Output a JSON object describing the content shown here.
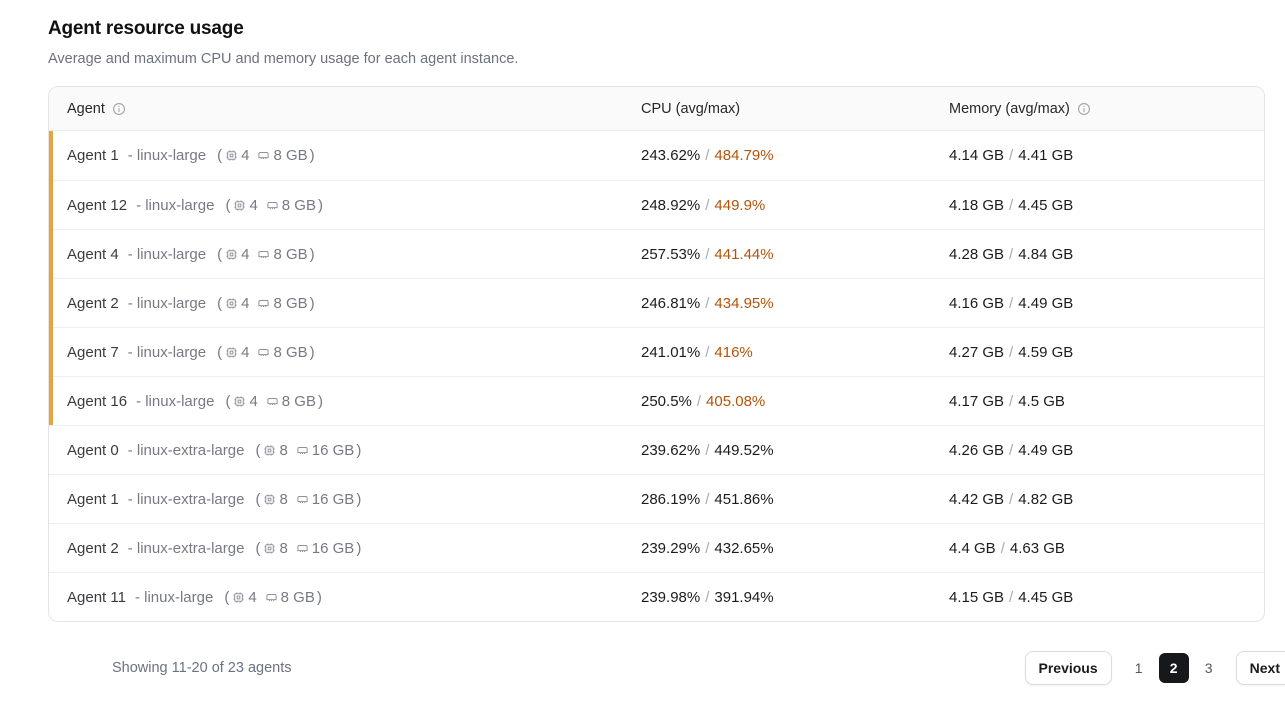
{
  "page": {
    "title": "Agent resource usage",
    "subtitle": "Average and maximum CPU and memory usage for each agent instance."
  },
  "table": {
    "columns": {
      "agent": "Agent",
      "cpu": "CPU (avg/max)",
      "memory": "Memory (avg/max)"
    },
    "value_separator": "/",
    "spec_open": "(",
    "spec_close": ")",
    "rows": [
      {
        "name": "Agent 1",
        "type_label": "- linux-large",
        "cpu_count": "4",
        "ram": "8 GB",
        "cpu_avg": "243.62%",
        "cpu_max": "484.79%",
        "mem_avg": "4.14 GB",
        "mem_max": "4.41 GB",
        "flagged": true
      },
      {
        "name": "Agent 12",
        "type_label": "- linux-large",
        "cpu_count": "4",
        "ram": "8 GB",
        "cpu_avg": "248.92%",
        "cpu_max": "449.9%",
        "mem_avg": "4.18 GB",
        "mem_max": "4.45 GB",
        "flagged": true
      },
      {
        "name": "Agent 4",
        "type_label": "- linux-large",
        "cpu_count": "4",
        "ram": "8 GB",
        "cpu_avg": "257.53%",
        "cpu_max": "441.44%",
        "mem_avg": "4.28 GB",
        "mem_max": "4.84 GB",
        "flagged": true
      },
      {
        "name": "Agent 2",
        "type_label": "- linux-large",
        "cpu_count": "4",
        "ram": "8 GB",
        "cpu_avg": "246.81%",
        "cpu_max": "434.95%",
        "mem_avg": "4.16 GB",
        "mem_max": "4.49 GB",
        "flagged": true
      },
      {
        "name": "Agent 7",
        "type_label": "- linux-large",
        "cpu_count": "4",
        "ram": "8 GB",
        "cpu_avg": "241.01%",
        "cpu_max": "416%",
        "mem_avg": "4.27 GB",
        "mem_max": "4.59 GB",
        "flagged": true
      },
      {
        "name": "Agent 16",
        "type_label": "- linux-large",
        "cpu_count": "4",
        "ram": "8 GB",
        "cpu_avg": "250.5%",
        "cpu_max": "405.08%",
        "mem_avg": "4.17 GB",
        "mem_max": "4.5 GB",
        "flagged": true
      },
      {
        "name": "Agent 0",
        "type_label": "- linux-extra-large",
        "cpu_count": "8",
        "ram": "16 GB",
        "cpu_avg": "239.62%",
        "cpu_max": "449.52%",
        "mem_avg": "4.26 GB",
        "mem_max": "4.49 GB",
        "flagged": false
      },
      {
        "name": "Agent 1",
        "type_label": "- linux-extra-large",
        "cpu_count": "8",
        "ram": "16 GB",
        "cpu_avg": "286.19%",
        "cpu_max": "451.86%",
        "mem_avg": "4.42 GB",
        "mem_max": "4.82 GB",
        "flagged": false
      },
      {
        "name": "Agent 2",
        "type_label": "- linux-extra-large",
        "cpu_count": "8",
        "ram": "16 GB",
        "cpu_avg": "239.29%",
        "cpu_max": "432.65%",
        "mem_avg": "4.4 GB",
        "mem_max": "4.63 GB",
        "flagged": false
      },
      {
        "name": "Agent 11",
        "type_label": "- linux-large",
        "cpu_count": "4",
        "ram": "8 GB",
        "cpu_avg": "239.98%",
        "cpu_max": "391.94%",
        "mem_avg": "4.15 GB",
        "mem_max": "4.45 GB",
        "flagged": false
      }
    ]
  },
  "footer": {
    "showing": "Showing 11-20 of 23 agents",
    "previous_label": "Previous",
    "next_label": "Next",
    "pages": [
      {
        "label": "1",
        "active": false
      },
      {
        "label": "2",
        "active": true
      },
      {
        "label": "3",
        "active": false
      }
    ]
  },
  "colors": {
    "flag_bar": "#e8a33d",
    "cpu_max_alert": "#b45309"
  }
}
